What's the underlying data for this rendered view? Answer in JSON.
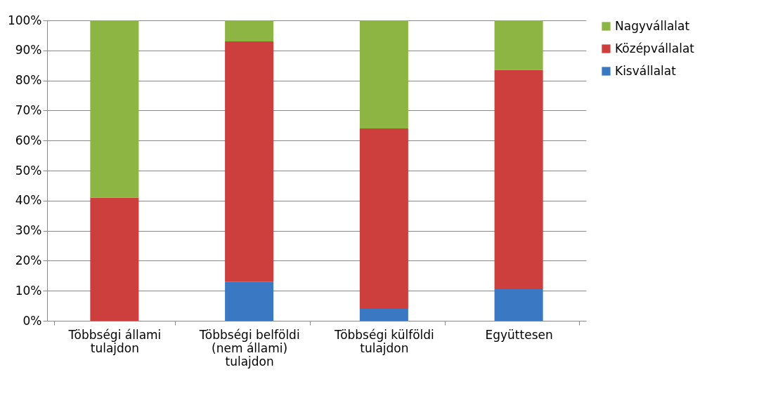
{
  "chart_data": {
    "type": "bar",
    "stacked": true,
    "categories": [
      "Többségi állami tulajdon",
      "Többségi belföldi (nem állami) tulajdon",
      "Többségi külföldi tulajdon",
      "Együttesen"
    ],
    "series": [
      {
        "name": "Kisvállalat",
        "color": "#3b78c4",
        "values": [
          0,
          13,
          4,
          10.5
        ]
      },
      {
        "name": "Középvállalat",
        "color": "#cc3f3d",
        "values": [
          41,
          80,
          60,
          73
        ]
      },
      {
        "name": "Nagyvállalat",
        "color": "#8db543",
        "values": [
          59,
          7,
          36,
          16.5
        ]
      }
    ],
    "ylim": [
      0,
      100
    ],
    "yticks": [
      {
        "value": 0,
        "label": "0%"
      },
      {
        "value": 10,
        "label": "10%"
      },
      {
        "value": 20,
        "label": "20%"
      },
      {
        "value": 30,
        "label": "30%"
      },
      {
        "value": 40,
        "label": "40%"
      },
      {
        "value": 50,
        "label": "50%"
      },
      {
        "value": 60,
        "label": "60%"
      },
      {
        "value": 70,
        "label": "70%"
      },
      {
        "value": 80,
        "label": "80%"
      },
      {
        "value": 90,
        "label": "90%"
      },
      {
        "value": 100,
        "label": "100%"
      }
    ],
    "grid": "y",
    "legend": "right"
  }
}
